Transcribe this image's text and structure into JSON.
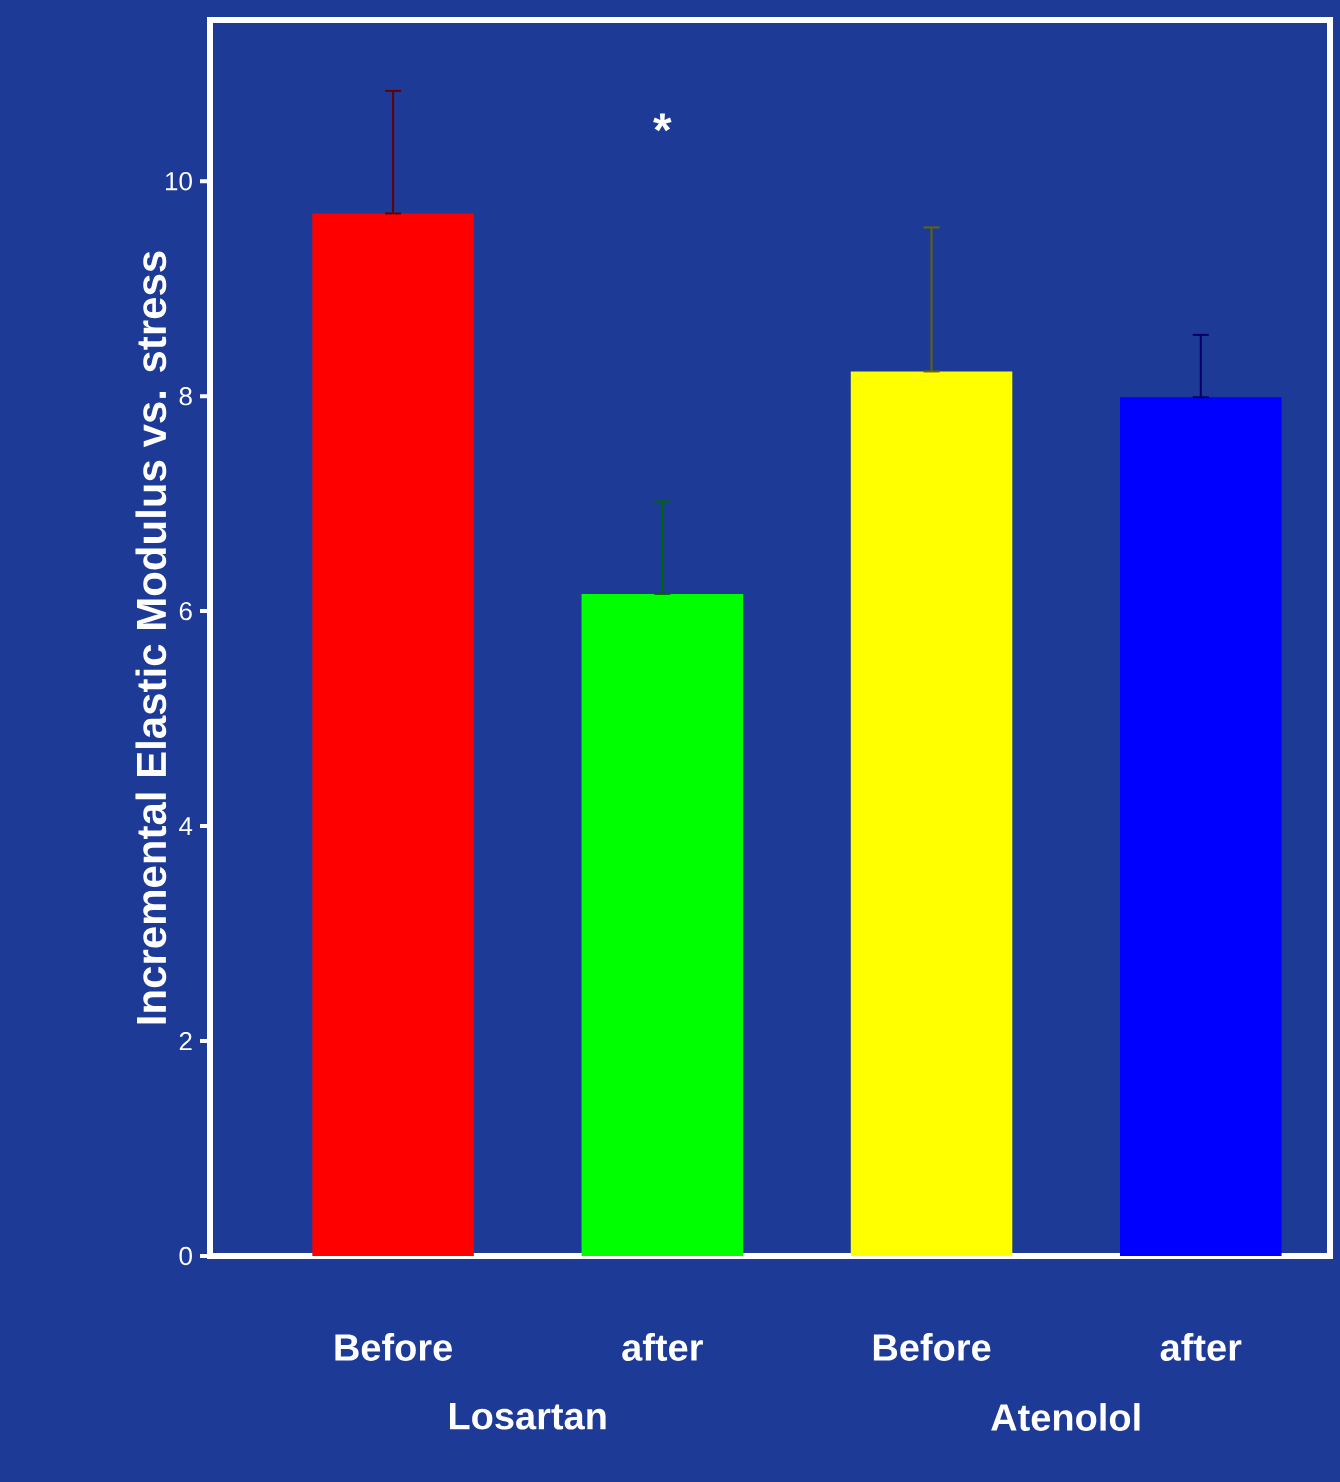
{
  "chart_data": {
    "type": "bar",
    "ylabel": "Incremental Elastic Modulus vs. stress",
    "categories": [
      "Before",
      "after",
      "Before",
      "after"
    ],
    "values": [
      9.7,
      6.16,
      8.23,
      7.99
    ],
    "colors": [
      "#ff0000",
      "#00ff00",
      "#ffff00",
      "#0000ff"
    ],
    "errors": [
      [
        9.7,
        10.84
      ],
      [
        6.16,
        7.02
      ],
      [
        8.23,
        9.57
      ],
      [
        7.99,
        8.57
      ]
    ],
    "ylim": [
      0,
      11.5
    ],
    "yticks": [
      0,
      2,
      4,
      6,
      8,
      10
    ],
    "grid": false,
    "annotations": [
      "*",
      "Losartan",
      "Atenolol"
    ]
  }
}
